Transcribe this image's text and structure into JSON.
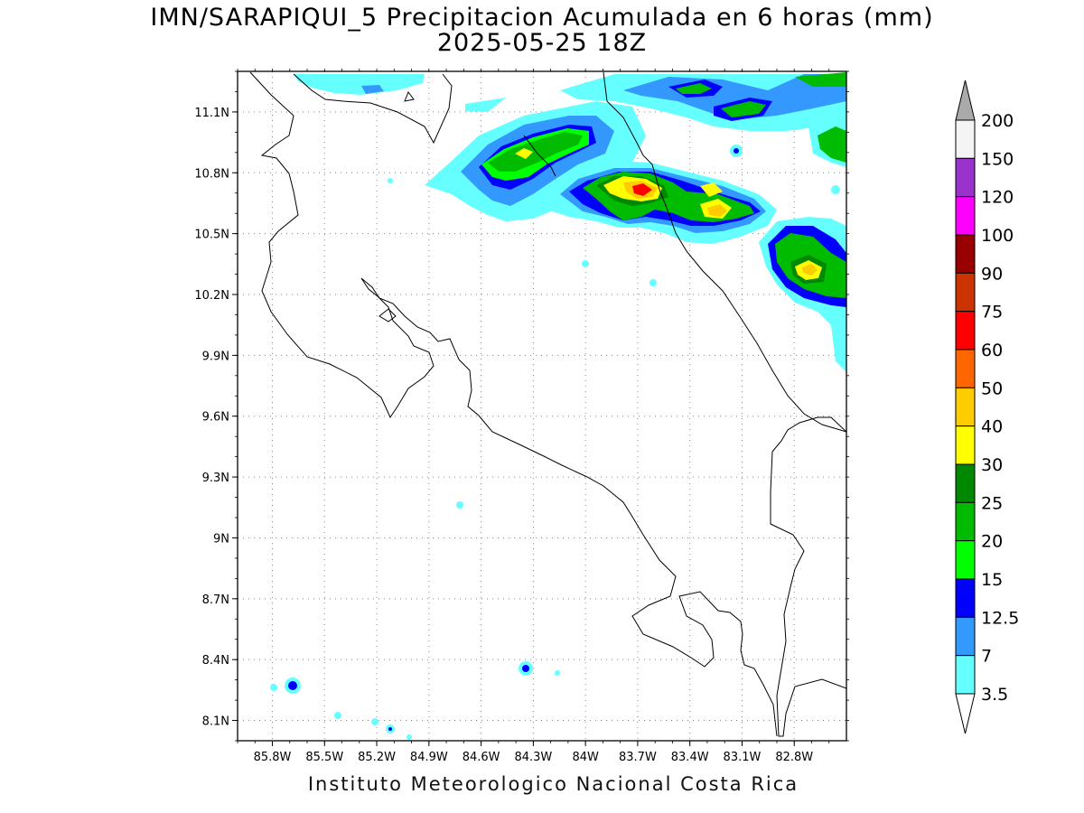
{
  "title": {
    "line1": "IMN/SARAPIQUI_5 Precipitacion Acumulada en 6 horas (mm)",
    "line2": "2025-05-25 18Z"
  },
  "footer": "Instituto Meteorologico Nacional Costa Rica",
  "map": {
    "lon_range": [
      -86.0,
      -82.5
    ],
    "lat_range": [
      8.0,
      11.3
    ],
    "x_ticks": [
      "85.8W",
      "85.5W",
      "85.2W",
      "84.9W",
      "84.6W",
      "84.3W",
      "84W",
      "83.7W",
      "83.4W",
      "83.1W",
      "82.8W"
    ],
    "y_ticks": [
      "11.1N",
      "10.8N",
      "10.5N",
      "10.2N",
      "9.9N",
      "9.6N",
      "9.3N",
      "9N",
      "8.7N",
      "8.4N",
      "8.1N"
    ],
    "gridlines": "dotted"
  },
  "colorbar": {
    "labels": [
      "200",
      "150",
      "120",
      "100",
      "90",
      "75",
      "60",
      "50",
      "40",
      "30",
      "25",
      "20",
      "15",
      "12.5",
      "7",
      "3.5"
    ],
    "colors": [
      "#f4f4f4",
      "#9933cc",
      "#ff00ff",
      "#990000",
      "#cc3300",
      "#ff0000",
      "#ff6600",
      "#ffcc00",
      "#ffff00",
      "#008800",
      "#00bb00",
      "#00ff00",
      "#0000ff",
      "#3399ff",
      "#66ffff"
    ],
    "top_arrow_color": "#aaaaaa",
    "bottom_arrow_color": "#ffffff"
  },
  "precip_colors": {
    "c3_5": "#66ffff",
    "c7": "#3399ff",
    "c12_5": "#0000ff",
    "c15": "#00ff00",
    "c20": "#00bb00",
    "c25": "#008800",
    "c30": "#ffff00",
    "c40": "#ffcc00",
    "c50": "#ff6600",
    "c60": "#ff0000"
  }
}
